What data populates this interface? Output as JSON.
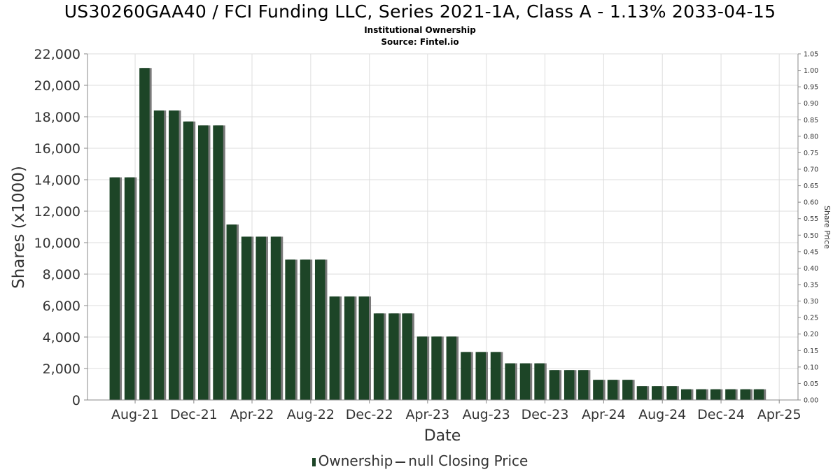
{
  "title": "US30260GAA40 / FCI Funding LLC, Series 2021-1A, Class A - 1.13% 2033-04-15",
  "subtitle_1": "Institutional Ownership",
  "subtitle_2": "Source: Fintel.io",
  "legend": {
    "series1": "Ownership",
    "series2": "null Closing Price"
  },
  "colors": {
    "bar": "#1d4527",
    "bar_shadow": "#7a7a7a",
    "grid": "#dddddd",
    "axis": "#888888"
  },
  "chart_data": {
    "type": "bar",
    "xlabel": "Date",
    "ylabel": "Shares (x1000)",
    "y2label": "Share Price",
    "ylim": [
      0,
      22000
    ],
    "y2lim": [
      0,
      1.05
    ],
    "yticks": [
      0,
      2000,
      4000,
      6000,
      8000,
      10000,
      12000,
      14000,
      16000,
      18000,
      20000,
      22000
    ],
    "ytick_labels": [
      "0",
      "2,000",
      "4,000",
      "6,000",
      "8,000",
      "10,000",
      "12,000",
      "14,000",
      "16,000",
      "18,000",
      "20,000",
      "22,000"
    ],
    "y2ticks": [
      0,
      0.05,
      0.1,
      0.15,
      0.2,
      0.25,
      0.3,
      0.35,
      0.4,
      0.45,
      0.5,
      0.55,
      0.6,
      0.65,
      0.7,
      0.75,
      0.8,
      0.85,
      0.9,
      0.95,
      1.0,
      1.05
    ],
    "y2tick_labels": [
      "0.00",
      "0.05",
      "0.10",
      "0.15",
      "0.20",
      "0.25",
      "0.30",
      "0.35",
      "0.40",
      "0.45",
      "0.50",
      "0.55",
      "0.60",
      "0.65",
      "0.70",
      "0.75",
      "0.80",
      "0.85",
      "0.90",
      "0.95",
      "1.00",
      "1.05"
    ],
    "x_start": "2021-04-24",
    "x_end": "2025-05-10",
    "x_tick_labels": [
      "Aug-21",
      "Dec-21",
      "Apr-22",
      "Aug-22",
      "Dec-22",
      "Apr-23",
      "Aug-23",
      "Dec-23",
      "Apr-24",
      "Aug-24",
      "Dec-24",
      "Apr-25"
    ],
    "x_tick_dates": [
      "2021-08-01",
      "2021-12-01",
      "2022-04-01",
      "2022-08-01",
      "2022-12-01",
      "2023-04-01",
      "2023-08-01",
      "2023-12-01",
      "2024-04-01",
      "2024-08-01",
      "2024-12-01",
      "2025-04-01"
    ],
    "grid": true,
    "legend_position": "bottom",
    "series": [
      {
        "name": "Ownership",
        "points": [
          {
            "date": "2021-06-30",
            "value": 14150
          },
          {
            "date": "2021-07-31",
            "value": 14150
          },
          {
            "date": "2021-08-31",
            "value": 21100
          },
          {
            "date": "2021-09-30",
            "value": 18400
          },
          {
            "date": "2021-10-31",
            "value": 18400
          },
          {
            "date": "2021-11-30",
            "value": 17700
          },
          {
            "date": "2021-12-31",
            "value": 17450
          },
          {
            "date": "2022-01-31",
            "value": 17450
          },
          {
            "date": "2022-02-28",
            "value": 11150
          },
          {
            "date": "2022-03-31",
            "value": 10380
          },
          {
            "date": "2022-04-30",
            "value": 10380
          },
          {
            "date": "2022-05-31",
            "value": 10380
          },
          {
            "date": "2022-06-30",
            "value": 8920
          },
          {
            "date": "2022-07-31",
            "value": 8920
          },
          {
            "date": "2022-08-31",
            "value": 8920
          },
          {
            "date": "2022-09-30",
            "value": 6580
          },
          {
            "date": "2022-10-31",
            "value": 6580
          },
          {
            "date": "2022-11-30",
            "value": 6580
          },
          {
            "date": "2022-12-31",
            "value": 5500
          },
          {
            "date": "2023-01-31",
            "value": 5500
          },
          {
            "date": "2023-02-28",
            "value": 5500
          },
          {
            "date": "2023-03-31",
            "value": 4030
          },
          {
            "date": "2023-04-30",
            "value": 4030
          },
          {
            "date": "2023-05-31",
            "value": 4030
          },
          {
            "date": "2023-06-30",
            "value": 3050
          },
          {
            "date": "2023-07-31",
            "value": 3050
          },
          {
            "date": "2023-08-31",
            "value": 3050
          },
          {
            "date": "2023-09-30",
            "value": 2330
          },
          {
            "date": "2023-10-31",
            "value": 2330
          },
          {
            "date": "2023-11-30",
            "value": 2330
          },
          {
            "date": "2023-12-31",
            "value": 1900
          },
          {
            "date": "2024-01-31",
            "value": 1900
          },
          {
            "date": "2024-02-29",
            "value": 1900
          },
          {
            "date": "2024-03-31",
            "value": 1280
          },
          {
            "date": "2024-04-30",
            "value": 1280
          },
          {
            "date": "2024-05-31",
            "value": 1280
          },
          {
            "date": "2024-06-30",
            "value": 880
          },
          {
            "date": "2024-07-31",
            "value": 880
          },
          {
            "date": "2024-08-31",
            "value": 880
          },
          {
            "date": "2024-09-30",
            "value": 680
          },
          {
            "date": "2024-10-31",
            "value": 680
          },
          {
            "date": "2024-11-30",
            "value": 680
          },
          {
            "date": "2024-12-31",
            "value": 680
          },
          {
            "date": "2025-01-31",
            "value": 680
          },
          {
            "date": "2025-02-28",
            "value": 680
          }
        ]
      }
    ]
  }
}
